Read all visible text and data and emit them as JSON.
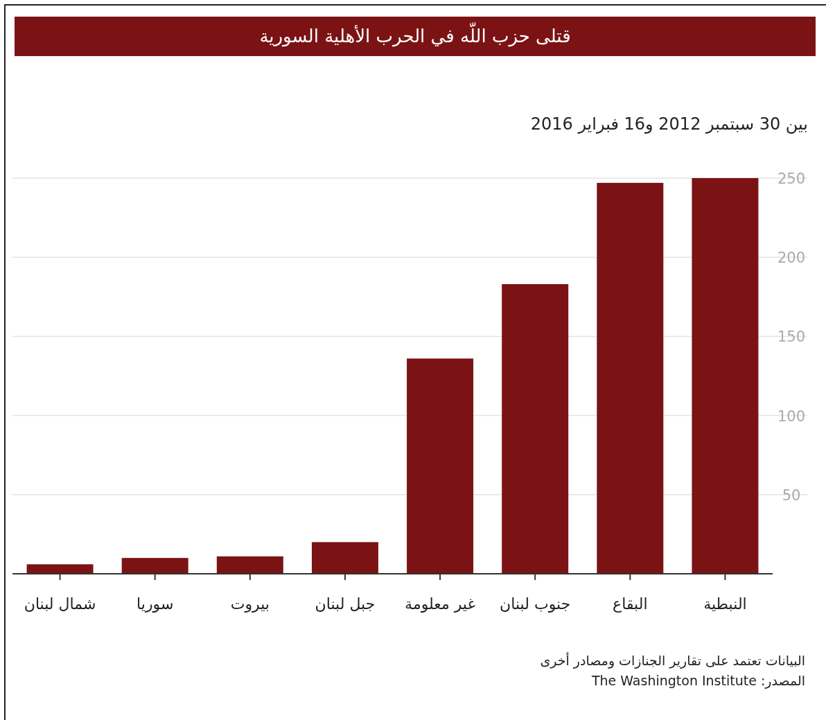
{
  "chart_data": {
    "type": "bar",
    "title": "قتلى حزب اللّه  في الحرب الأهلية السورية",
    "subtitle": "بين 30 سبتمبر 2012 و16 فبراير 2016",
    "categories": [
      "شمال لبنان",
      "سوريا",
      "بيروت",
      "جبل لبنان",
      "غير معلومة",
      "جنوب لبنان",
      "البقاع",
      "النبطية"
    ],
    "values": [
      6,
      10,
      11,
      20,
      136,
      183,
      247,
      250
    ],
    "ylim": [
      0,
      250
    ],
    "color": "#7b1315",
    "yticks": [
      50,
      100,
      150,
      200,
      250
    ],
    "grid": "y",
    "annotations": [
      "البيانات تعتمد على تقارير الجنازات ومصادر أخرى",
      "المصدر: The Washington Institute"
    ]
  }
}
